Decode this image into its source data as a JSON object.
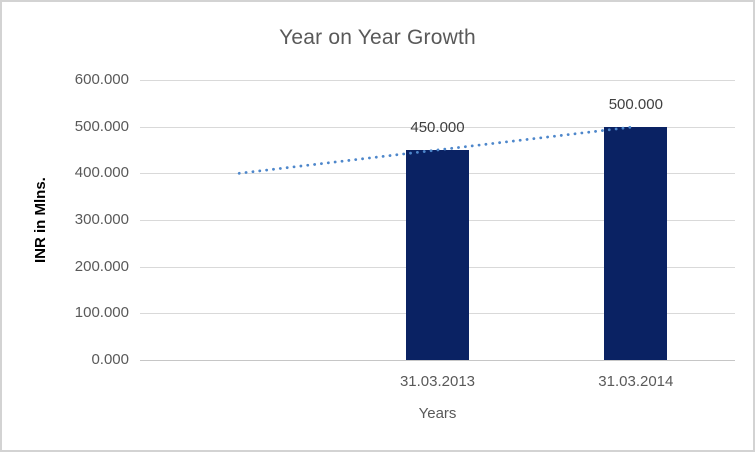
{
  "chart_data": {
    "type": "bar",
    "title": "Year on Year Growth",
    "xlabel": "Years",
    "ylabel": "INR in Mlns.",
    "categories": [
      "",
      "31.03.2013",
      "31.03.2014"
    ],
    "series": [
      {
        "name": "INR in Mlns.",
        "color": "#0a2263",
        "values": [
          null,
          450,
          500
        ],
        "data_labels": [
          null,
          "450.000",
          "500.000"
        ]
      }
    ],
    "y_axis": {
      "min": 0,
      "max": 600,
      "step": 100,
      "tick_labels": [
        "0.000",
        "100.000",
        "200.000",
        "300.000",
        "400.000",
        "500.000",
        "600.000"
      ]
    },
    "grid": true,
    "legend": "none",
    "trendline": {
      "type": "linear",
      "style": "dotted",
      "color": "#4e87cb",
      "points": [
        {
          "category_index": 0,
          "value": 400
        },
        {
          "category_index": 2,
          "value": 500
        }
      ]
    },
    "colors": {
      "title": "#595959",
      "axis_text": "#595959",
      "data_label": "#404040",
      "gridline": "#d9d9d9",
      "axis_line": "#c6c6c6",
      "bar": "#0a2263",
      "trendline": "#4e87cb",
      "chart_border": "#d3d3d3",
      "background": "#ffffff"
    }
  }
}
